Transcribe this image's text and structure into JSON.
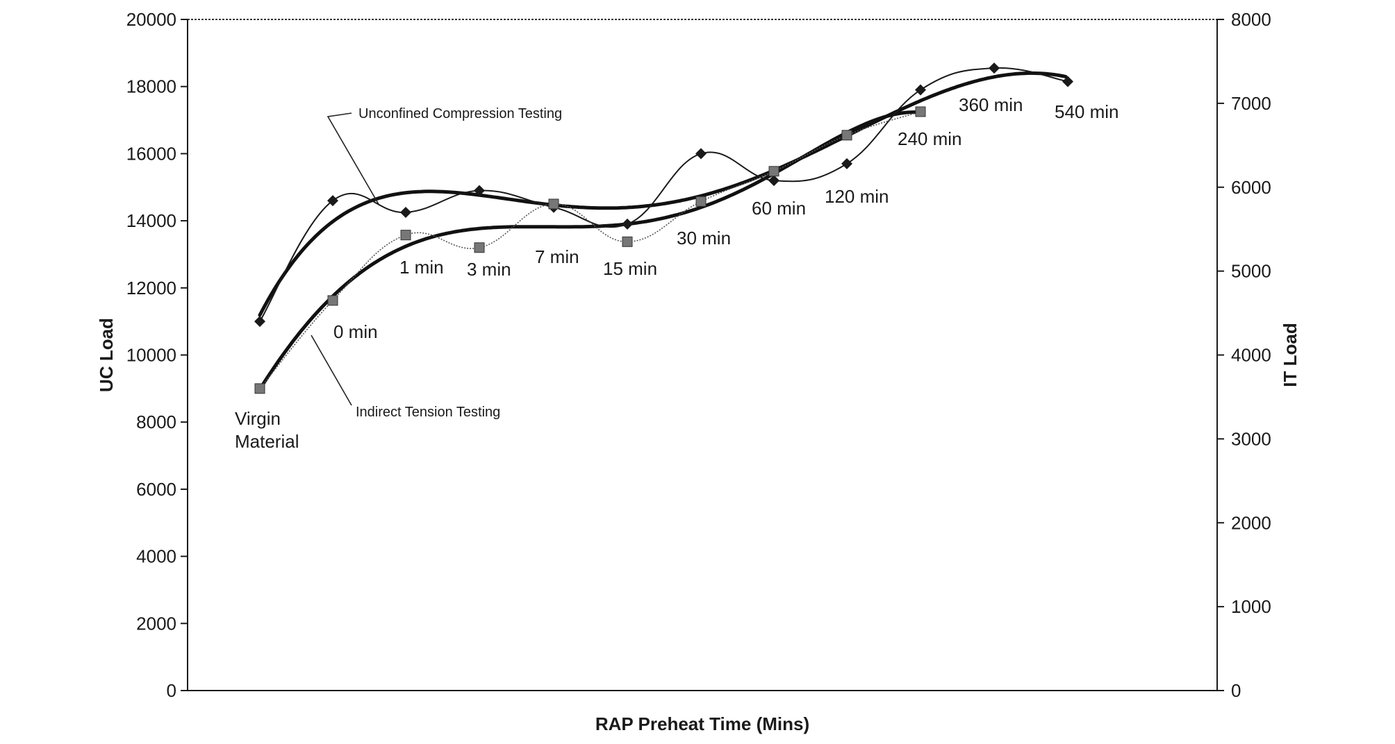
{
  "chart_data": {
    "type": "line",
    "xlabel": "RAP Preheat Time (Mins)",
    "ylabel": "UC Load",
    "y2label": "IT Load",
    "ylim": [
      0,
      20000
    ],
    "y2lim": [
      0,
      8000
    ],
    "yticks": [
      0,
      2000,
      4000,
      6000,
      8000,
      10000,
      12000,
      14000,
      16000,
      18000,
      20000
    ],
    "y2ticks": [
      0,
      1000,
      2000,
      3000,
      4000,
      5000,
      6000,
      7000,
      8000
    ],
    "categories": [
      "Virgin Material",
      "0 min",
      "1 min",
      "3 min",
      "7 min",
      "15 min",
      "30 min",
      "60 min",
      "120 min",
      "240 min",
      "360 min",
      "540 min"
    ],
    "grid": false,
    "series": [
      {
        "name": "Unconfined Compression Testing",
        "axis": "left",
        "marker": "diamond",
        "values": [
          11000,
          14600,
          14250,
          14900,
          14400,
          13900,
          16000,
          15200,
          15700,
          17900,
          18550,
          18150
        ]
      },
      {
        "name": "Indirect Tension Testing",
        "axis": "right",
        "marker": "square",
        "values": [
          3600,
          4650,
          5430,
          5280,
          5800,
          5350,
          5830,
          6190,
          6620,
          6900,
          null,
          null
        ]
      }
    ],
    "colors": {
      "line": "#1a1a1a",
      "trend": "#111111",
      "square_marker": "#777777"
    }
  }
}
